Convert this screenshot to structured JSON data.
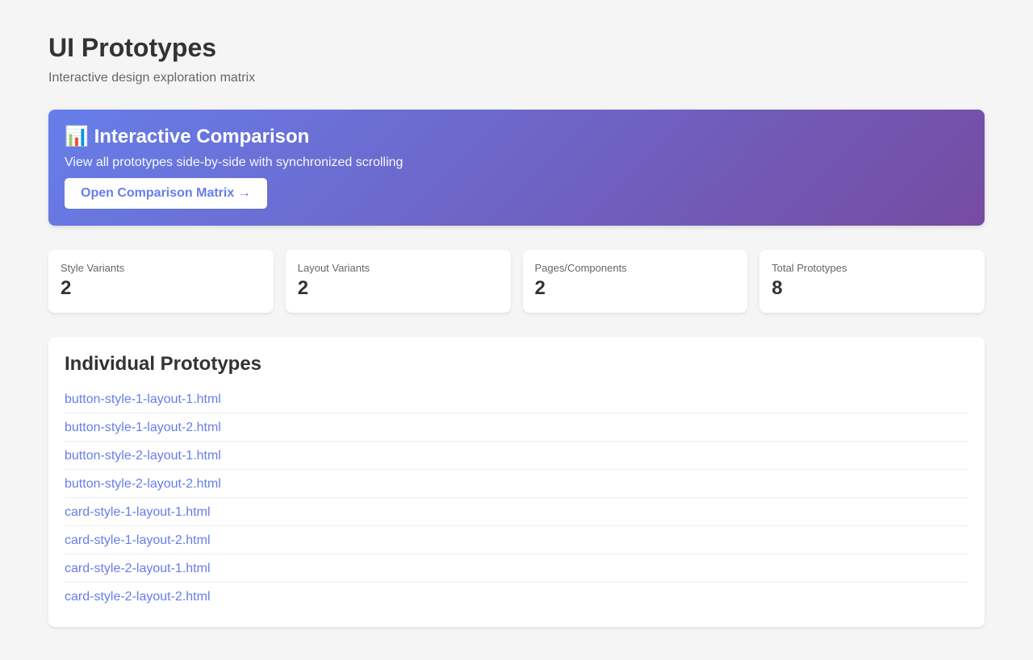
{
  "header": {
    "title": "UI Prototypes",
    "subtitle": "Interactive design exploration matrix"
  },
  "banner": {
    "icon": "📊",
    "title": "Interactive Comparison",
    "description": "View all prototypes side-by-side with synchronized scrolling",
    "button_label": "Open Comparison Matrix →"
  },
  "stats": [
    {
      "label": "Style Variants",
      "value": "2"
    },
    {
      "label": "Layout Variants",
      "value": "2"
    },
    {
      "label": "Pages/Components",
      "value": "2"
    },
    {
      "label": "Total Prototypes",
      "value": "8"
    }
  ],
  "prototypes": {
    "title": "Individual Prototypes",
    "items": [
      "button-style-1-layout-1.html",
      "button-style-1-layout-2.html",
      "button-style-2-layout-1.html",
      "button-style-2-layout-2.html",
      "card-style-1-layout-1.html",
      "card-style-1-layout-2.html",
      "card-style-2-layout-1.html",
      "card-style-2-layout-2.html"
    ]
  },
  "colors": {
    "accent": "#667eea",
    "gradient_end": "#764ba2",
    "background": "#f5f5f5"
  }
}
